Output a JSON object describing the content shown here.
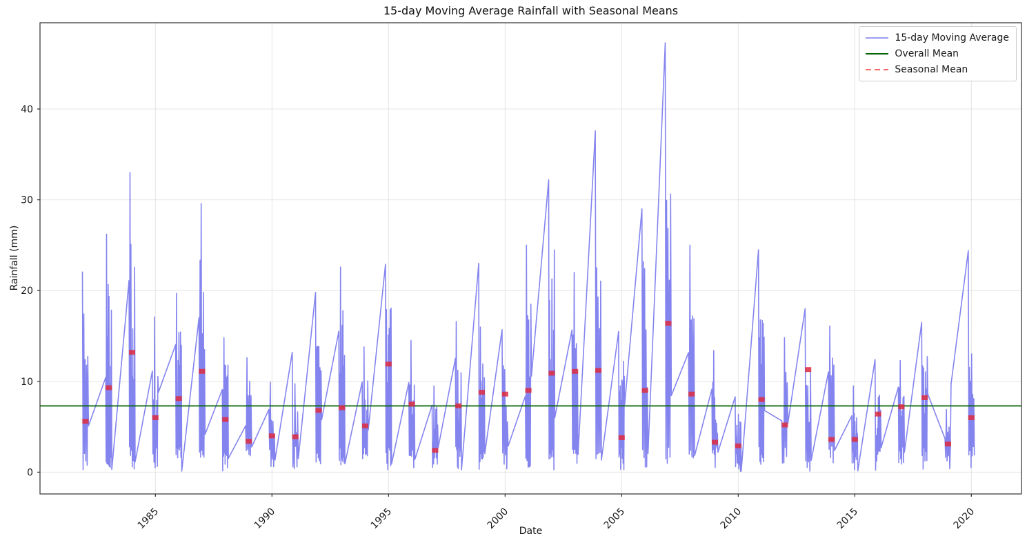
{
  "chart_data": {
    "type": "line",
    "title": "15-day Moving Average Rainfall with Seasonal Means",
    "xlabel": "Date",
    "ylabel": "Rainfall (mm)",
    "x_ticks": [
      1985,
      1990,
      1995,
      2000,
      2005,
      2010,
      2015,
      2020
    ],
    "y_ticks": [
      0,
      10,
      20,
      30,
      40
    ],
    "x_range": [
      1980.05,
      2022.15
    ],
    "y_range": [
      -2.4,
      49.5
    ],
    "grid": true,
    "legend_position": "upper right",
    "legend_items": [
      {
        "label": "15-day Moving Average",
        "style": "solid"
      },
      {
        "label": "Overall Mean",
        "style": "solid"
      },
      {
        "label": "Seasonal Mean",
        "style": "dashed"
      }
    ],
    "overall_mean": 7.3,
    "season_half_width": 0.13,
    "marker_size": [
      9,
      7
    ],
    "colors": {
      "moving_average": "#8484ef",
      "legend_moving_average": "#9b9bf3",
      "overall_mean": "#006400",
      "seasonal_mean": "#dc2f45",
      "legend_seasonal_mean": "#f56a6a",
      "grid": "#e4e4e4",
      "spine": "#2e2e2e"
    },
    "seasons": [
      {
        "year": 1982,
        "peak": 22.1,
        "mean": 5.6,
        "start_at_peak": true
      },
      {
        "year": 1983,
        "peak": 26.2,
        "mean": 9.3,
        "start_at_peak": false
      },
      {
        "year": 1984,
        "peak": 33.0,
        "mean": 13.2,
        "start_at_peak": false
      },
      {
        "year": 1985,
        "peak": 17.1,
        "mean": 6.0,
        "start_at_peak": false
      },
      {
        "year": 1986,
        "peak": 19.7,
        "mean": 8.1,
        "start_at_peak": false
      },
      {
        "year": 1987,
        "peak": 29.6,
        "mean": 11.1,
        "start_at_peak": false
      },
      {
        "year": 1988,
        "peak": 14.8,
        "mean": 5.8,
        "start_at_peak": false
      },
      {
        "year": 1989,
        "peak": 12.6,
        "mean": 3.4,
        "start_at_peak": false
      },
      {
        "year": 1990,
        "peak": 9.9,
        "mean": 4.0,
        "start_at_peak": false
      },
      {
        "year": 1991,
        "peak": 13.2,
        "mean": 3.9,
        "start_at_peak": false
      },
      {
        "year": 1992,
        "peak": 19.8,
        "mean": 6.8,
        "start_at_peak": true
      },
      {
        "year": 1993,
        "peak": 22.6,
        "mean": 7.1,
        "start_at_peak": false
      },
      {
        "year": 1994,
        "peak": 13.8,
        "mean": 5.1,
        "start_at_peak": false
      },
      {
        "year": 1995,
        "peak": 22.9,
        "mean": 11.9,
        "start_at_peak": true
      },
      {
        "year": 1996,
        "peak": 14.5,
        "mean": 7.5,
        "start_at_peak": false
      },
      {
        "year": 1997,
        "peak": 9.5,
        "mean": 2.4,
        "start_at_peak": false
      },
      {
        "year": 1998,
        "peak": 16.6,
        "mean": 7.3,
        "start_at_peak": false
      },
      {
        "year": 1999,
        "peak": 23.0,
        "mean": 8.8,
        "start_at_peak": true
      },
      {
        "year": 2000,
        "peak": 15.7,
        "mean": 8.6,
        "start_at_peak": false
      },
      {
        "year": 2001,
        "peak": 25.0,
        "mean": 9.0,
        "start_at_peak": false
      },
      {
        "year": 2002,
        "peak": 32.2,
        "mean": 10.9,
        "start_at_peak": true
      },
      {
        "year": 2003,
        "peak": 22.0,
        "mean": 11.1,
        "start_at_peak": false
      },
      {
        "year": 2004,
        "peak": 37.6,
        "mean": 11.2,
        "start_at_peak": true
      },
      {
        "year": 2005,
        "peak": 15.5,
        "mean": 3.8,
        "start_at_peak": false
      },
      {
        "year": 2006,
        "peak": 29.0,
        "mean": 9.0,
        "start_at_peak": true
      },
      {
        "year": 2007,
        "peak": 47.3,
        "mean": 16.4,
        "start_at_peak": false
      },
      {
        "year": 2008,
        "peak": 25.0,
        "mean": 8.6,
        "start_at_peak": false
      },
      {
        "year": 2009,
        "peak": 13.4,
        "mean": 3.3,
        "start_at_peak": false
      },
      {
        "year": 2010,
        "peak": 8.3,
        "mean": 2.9,
        "start_at_peak": false
      },
      {
        "year": 2011,
        "peak": 24.5,
        "mean": 8.0,
        "start_at_peak": true
      },
      {
        "year": 2012,
        "peak": 14.8,
        "mean": 5.2,
        "start_at_peak": false
      },
      {
        "year": 2013,
        "peak": 18.0,
        "mean": 11.3,
        "start_at_peak": true
      },
      {
        "year": 2014,
        "peak": 16.1,
        "mean": 3.6,
        "start_at_peak": false
      },
      {
        "year": 2015,
        "peak": 9.5,
        "mean": 3.6,
        "start_at_peak": false
      },
      {
        "year": 2016,
        "peak": 12.4,
        "mean": 6.4,
        "start_at_peak": true
      },
      {
        "year": 2017,
        "peak": 12.3,
        "mean": 7.2,
        "start_at_peak": false
      },
      {
        "year": 2018,
        "peak": 16.5,
        "mean": 8.2,
        "start_at_peak": true
      },
      {
        "year": 2019,
        "peak": 6.9,
        "mean": 3.1,
        "start_at_peak": false
      },
      {
        "year": 2020,
        "peak": 24.4,
        "mean": 6.0,
        "start_at_peak": true
      }
    ]
  }
}
